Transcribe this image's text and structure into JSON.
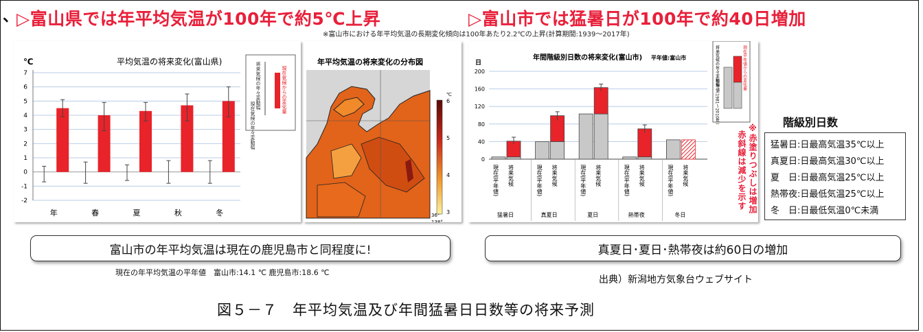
{
  "headers": {
    "left": "▷富山県では年平均気温が100年で約5℃上昇",
    "right": "▷富山市では猛暑日が100年で約40日増加",
    "mark": "、"
  },
  "top_note": "※富山市における年平均気温の長期変化傾向は100年あたり2.2℃の上昇(計算期間:1939〜2017年)",
  "left_chart": {
    "unit": "℃",
    "title": "平均気温の将来変化(富山県)",
    "legend_labels": {
      "red": "現在気候からの変化量",
      "bar_range": "将来気候の年々変動幅",
      "base_range": "現在気候の年々変動幅"
    }
  },
  "map": {
    "title": "年平均気温の将来変化の分布図",
    "scale_unit": "℃",
    "scale_ticks": [
      "6",
      "5",
      "4",
      "3"
    ],
    "lat_label": "36°",
    "lon_label": "138°"
  },
  "right_chart": {
    "unit": "日",
    "title": "年間階級別日数の将来変化(富山市)",
    "baseline_note": "平年値:富山市",
    "legend_labels": {
      "red": "現在平年値からの変化量",
      "future_range": "将来気候の年々変動幅",
      "baseline": "平年値(1981〜2010年)"
    },
    "xlabels_now": "現在(平年値)",
    "xlabels_future": "将来気候",
    "note_red": "※赤塗りつぶしは増加",
    "note_hatch": "赤斜線は減少を示す"
  },
  "legend_box": {
    "title": "階級別日数",
    "rows": [
      "猛暑日:日最高気温35℃以上",
      "真夏日:日最高気温30℃以上",
      "夏　日:日最高気温25℃以上",
      "熱帯夜:日最低気温25℃以上",
      "冬　日:日最低気温0℃未満"
    ]
  },
  "caption_left": "富山市の年平均気温は現在の鹿児島市と同程度に!",
  "caption_right": "真夏日･夏日･熱帯夜は約60日の増加",
  "sub_left": "現在の年平均気温の平年値　富山市:14.1 ℃  鹿児島市:18.6 ℃",
  "source": "出典）新潟地方気象台ウェブサイト",
  "figure_caption": "図５－７　年平均気温及び年間猛暑日日数等の将来予測",
  "colors": {
    "red": "#e8232a",
    "gray": "#c8c8c8",
    "header": "#e8203a"
  },
  "chart_data": [
    {
      "type": "bar",
      "title": "平均気温の将来変化(富山県)",
      "ylabel": "℃",
      "ylim": [
        -2,
        7
      ],
      "yticks": [
        "7",
        "6",
        "5",
        "4",
        "3",
        "2",
        "1",
        "0",
        "-1",
        "-2"
      ],
      "categories": [
        "年",
        "春",
        "夏",
        "秋",
        "冬"
      ],
      "series": [
        {
          "name": "現在気候からの変化量",
          "values": [
            4.5,
            4.0,
            4.3,
            4.7,
            5.0
          ],
          "error_low": [
            3.9,
            2.9,
            3.6,
            3.6,
            3.9
          ],
          "error_high": [
            5.1,
            4.9,
            4.9,
            5.5,
            6.0
          ]
        },
        {
          "name": "現在気候の年々変動幅",
          "low": [
            -0.7,
            -0.8,
            -0.6,
            -0.8,
            -0.8
          ],
          "high": [
            0.4,
            0.7,
            0.5,
            0.8,
            0.8
          ]
        }
      ]
    },
    {
      "type": "bar",
      "title": "年間階級別日数の将来変化(富山市)",
      "ylabel": "日",
      "ylim": [
        0,
        200
      ],
      "yticks": [
        "200",
        "160",
        "120",
        "80",
        "40",
        "0"
      ],
      "categories": [
        "猛暑日",
        "真夏日",
        "夏日",
        "熱帯夜",
        "冬日"
      ],
      "series": [
        {
          "name": "現在(平年値)",
          "values": [
            5,
            40,
            103,
            5,
            44
          ]
        },
        {
          "name": "将来気候",
          "base": [
            5,
            40,
            103,
            5,
            44
          ],
          "change": [
            36,
            59,
            60,
            64,
            -44
          ],
          "error_low": [
            35,
            88,
            155,
            60,
            0
          ],
          "error_high": [
            50,
            108,
            171,
            78,
            0
          ]
        }
      ]
    }
  ]
}
